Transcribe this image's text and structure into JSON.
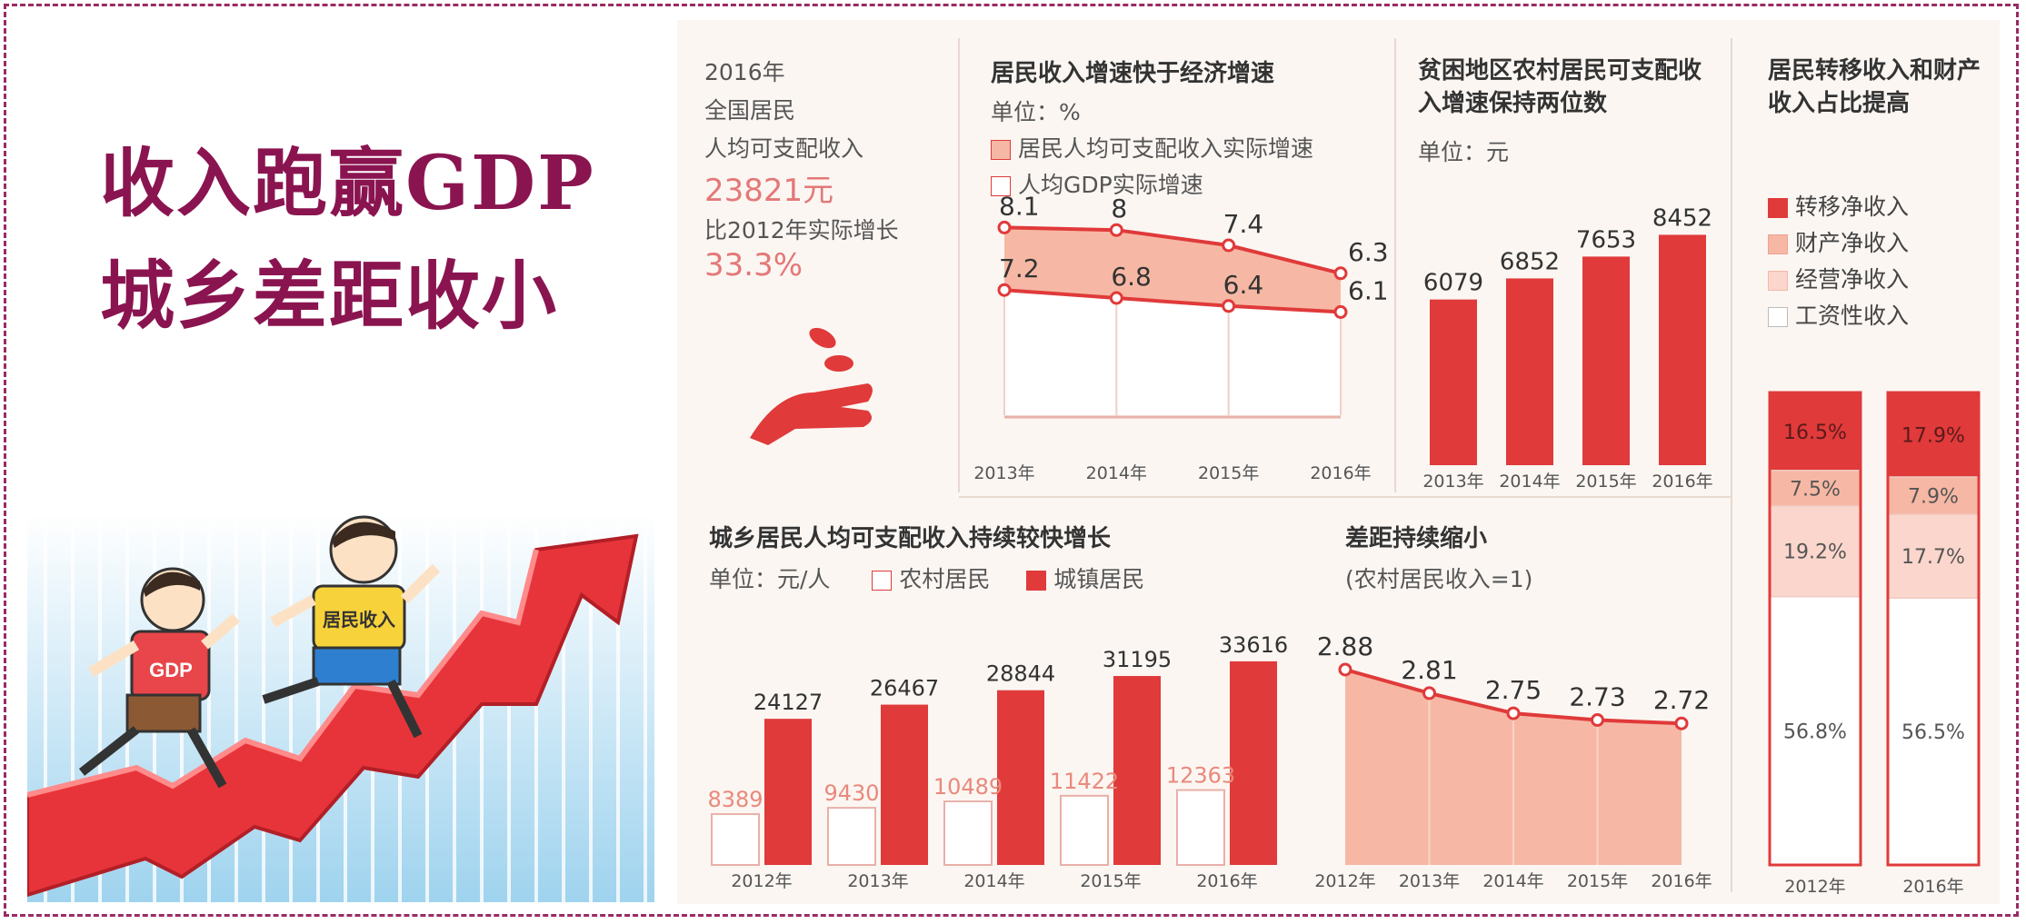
{
  "headline": {
    "line1": "收入跑赢GDP",
    "line2": "城乡差距收小"
  },
  "illustration": {
    "runner_gdp": "GDP",
    "runner_income": "居民收入"
  },
  "summary": {
    "year": "2016年",
    "scope": "全国居民",
    "metric": "人均可支配收入",
    "value": "23821元",
    "growth_label": "比2012年实际增长",
    "growth_value": "33.3%"
  },
  "colors": {
    "red": "#e03a3a",
    "pink": "#f6b8a4",
    "light": "#fbd6cc",
    "white": "#ffffff"
  },
  "chart_data": [
    {
      "type": "line",
      "title": "居民收入增速快于经济增速",
      "unit": "单位：%",
      "x": [
        "2013年",
        "2014年",
        "2015年",
        "2016年"
      ],
      "series": [
        {
          "name": "居民人均可支配收入实际增速",
          "values": [
            8.1,
            8.0,
            7.4,
            6.3
          ]
        },
        {
          "name": "人均GDP实际增速",
          "values": [
            7.2,
            6.8,
            6.4,
            6.1
          ]
        }
      ],
      "ylim": [
        0,
        10
      ]
    },
    {
      "type": "bar",
      "title": "贫困地区农村居民可支配收入增速保持两位数",
      "unit": "单位：元",
      "categories": [
        "2013年",
        "2014年",
        "2015年",
        "2016年"
      ],
      "values": [
        6079,
        6852,
        7653,
        8452
      ],
      "ylim": [
        0,
        9000
      ]
    },
    {
      "type": "bar",
      "title": "居民转移收入和财产收入占比提高",
      "categories": [
        "2012年",
        "2016年"
      ],
      "legend": [
        "转移净收入",
        "财产净收入",
        "经营净收入",
        "工资性收入"
      ],
      "series": [
        {
          "name": "转移净收入",
          "values": [
            "16.5%",
            "17.9%"
          ]
        },
        {
          "name": "财产净收入",
          "values": [
            "7.5%",
            "7.9%"
          ]
        },
        {
          "name": "经营净收入",
          "values": [
            "19.2%",
            "17.7%"
          ]
        },
        {
          "name": "工资性收入",
          "values": [
            "56.8%",
            "56.5%"
          ]
        }
      ],
      "stacked": true
    },
    {
      "type": "bar",
      "title": "城乡居民人均可支配收入持续较快增长",
      "unit": "单位：元/人",
      "categories": [
        "2012年",
        "2013年",
        "2014年",
        "2015年",
        "2016年"
      ],
      "series": [
        {
          "name": "农村居民",
          "values": [
            8389,
            9430,
            10489,
            11422,
            12363
          ]
        },
        {
          "name": "城镇居民",
          "values": [
            24127,
            26467,
            28844,
            31195,
            33616
          ]
        }
      ],
      "ylim": [
        0,
        36000
      ]
    },
    {
      "type": "area",
      "title": "差距持续缩小",
      "subtitle": "(农村居民收入=1)",
      "x": [
        "2012年",
        "2013年",
        "2014年",
        "2015年",
        "2016年"
      ],
      "values": [
        2.88,
        2.81,
        2.75,
        2.73,
        2.72
      ]
    }
  ]
}
